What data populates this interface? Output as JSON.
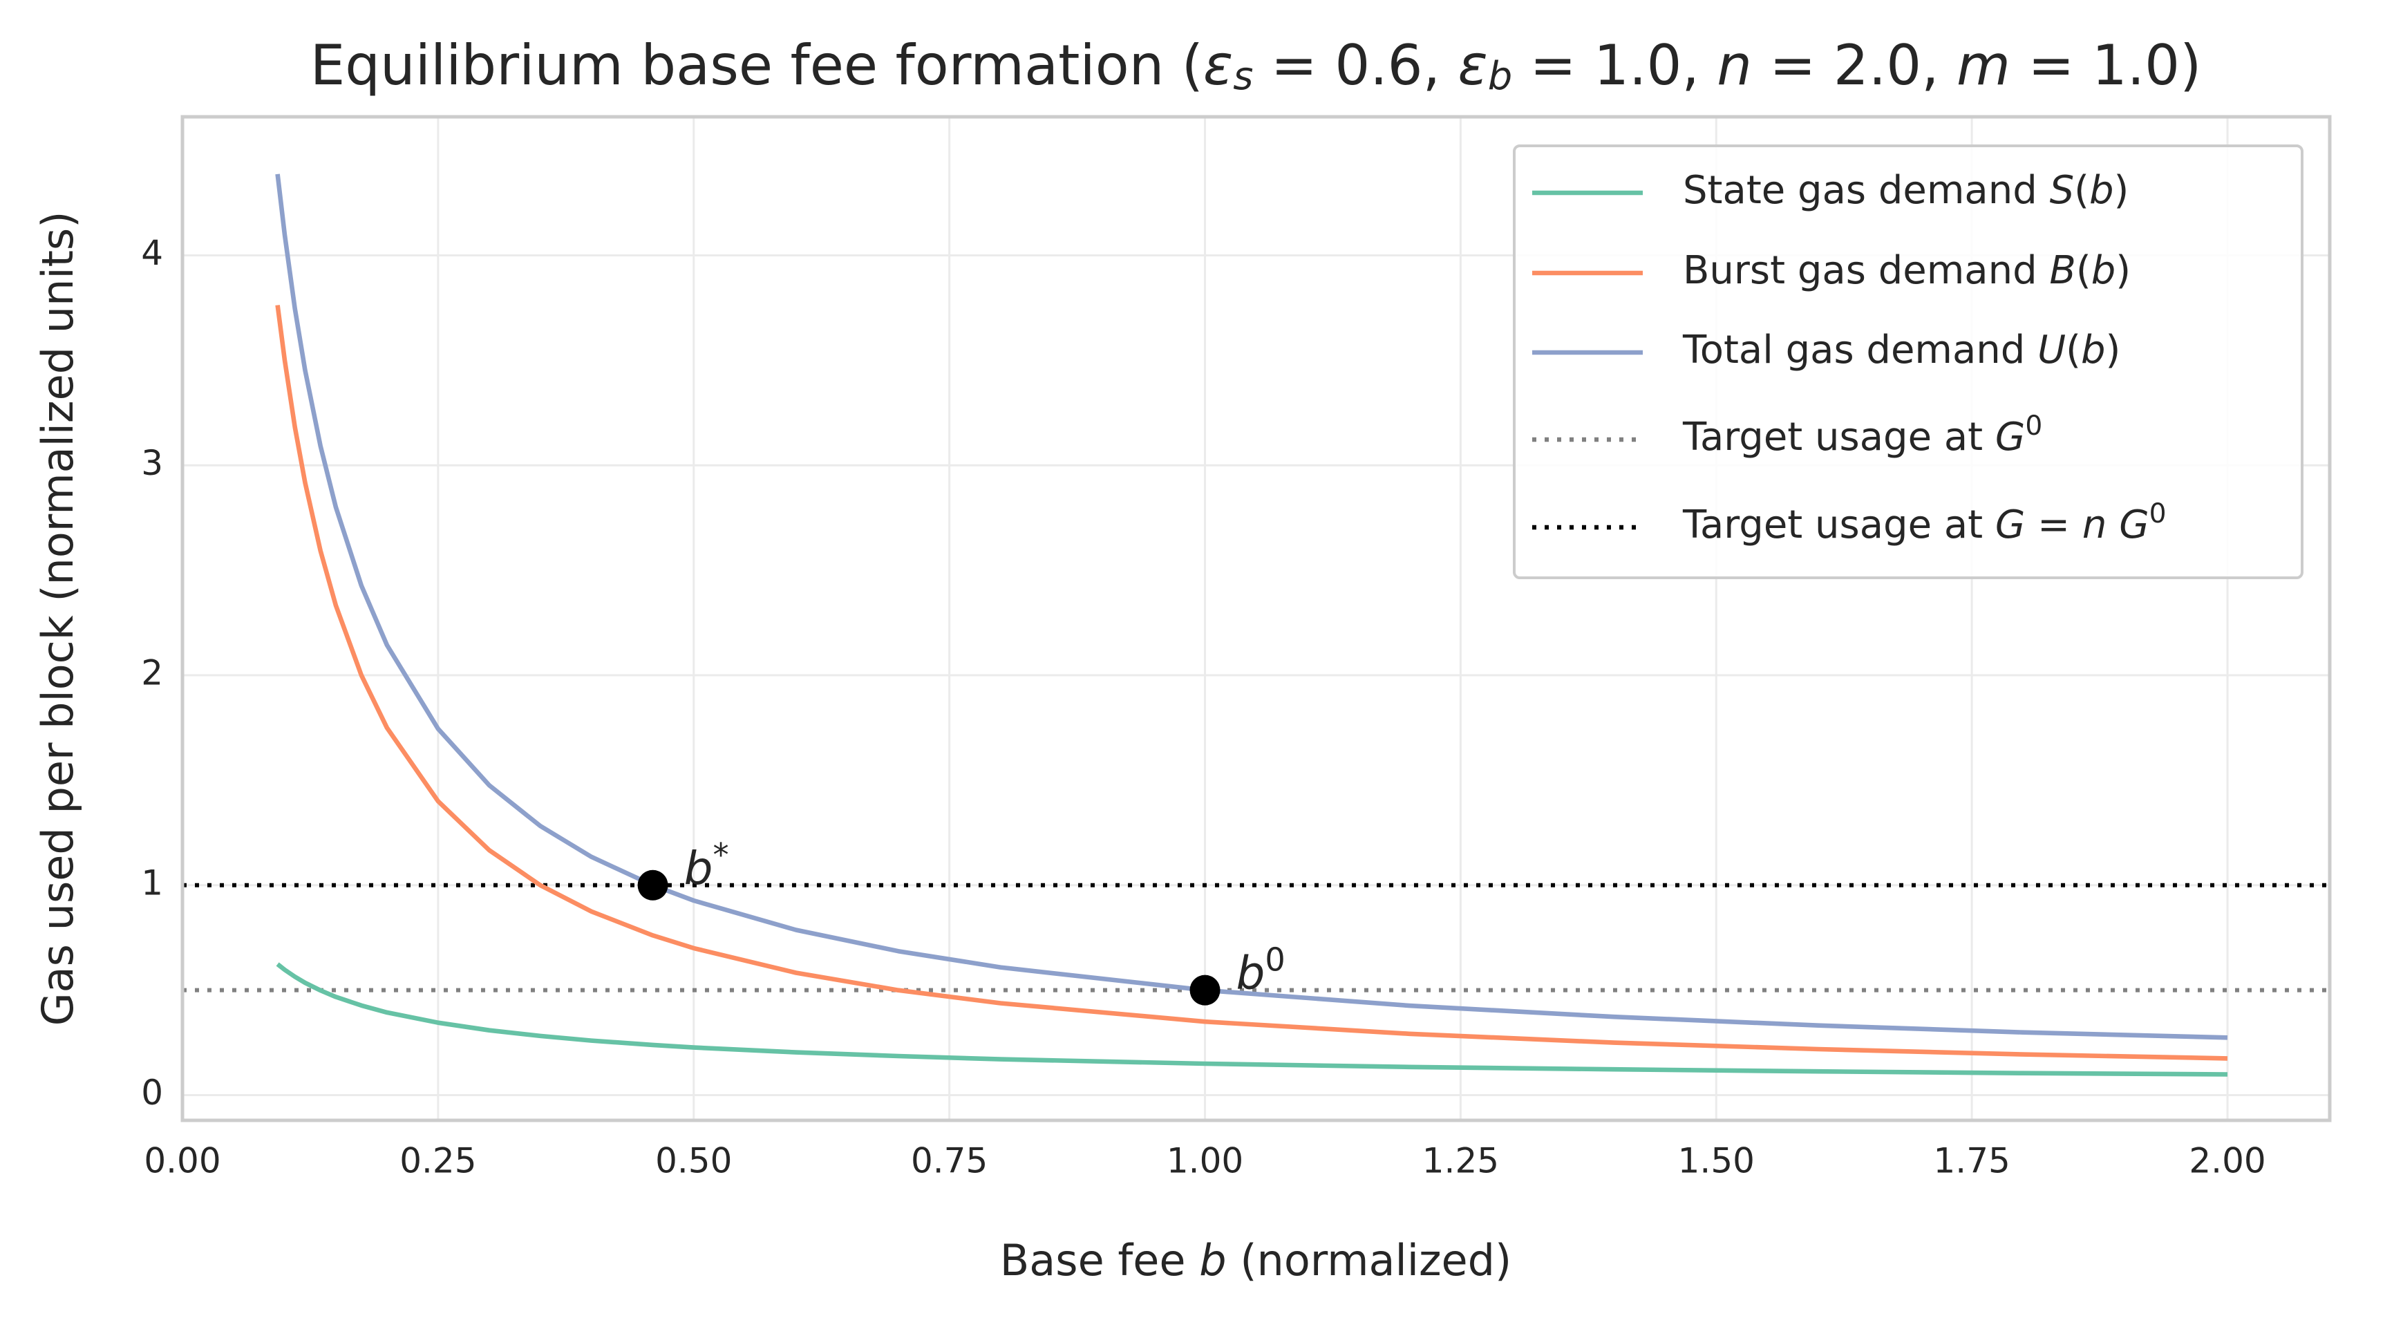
{
  "chart_data": {
    "type": "line",
    "title": "Equilibrium base fee formation ($ε_s = 0.6$, $ε_b = 1.0$, $n = 2.0$, $m = 1.0$)",
    "x_label": "Base fee $b$ (normalized)",
    "y_label": "Gas used per block (normalized units)",
    "x": [
      0.093,
      0.1,
      0.11,
      0.12,
      0.135,
      0.15,
      0.175,
      0.2,
      0.25,
      0.3,
      0.35,
      0.4,
      0.46,
      0.5,
      0.6,
      0.7,
      0.8,
      1.0,
      1.2,
      1.4,
      1.6,
      1.8,
      2.0
    ],
    "series": [
      {
        "name": "State gas demand $S(b)$",
        "color": "#66c2a5",
        "values": [
          0.624,
          0.597,
          0.564,
          0.535,
          0.499,
          0.468,
          0.427,
          0.394,
          0.345,
          0.309,
          0.282,
          0.26,
          0.239,
          0.227,
          0.204,
          0.186,
          0.171,
          0.15,
          0.134,
          0.123,
          0.113,
          0.105,
          0.099
        ]
      },
      {
        "name": "Burst gas demand $B(b)$",
        "color": "#fc8d62",
        "values": [
          3.763,
          3.5,
          3.182,
          2.917,
          2.593,
          2.333,
          2.0,
          1.75,
          1.4,
          1.167,
          1.0,
          0.875,
          0.761,
          0.7,
          0.583,
          0.5,
          0.438,
          0.35,
          0.292,
          0.25,
          0.219,
          0.194,
          0.175
        ]
      },
      {
        "name": "Total gas demand $U(b)$",
        "color": "#8da0cb",
        "values": [
          4.387,
          4.097,
          3.746,
          3.452,
          3.092,
          2.801,
          2.427,
          2.144,
          1.745,
          1.476,
          1.282,
          1.135,
          1.0,
          0.927,
          0.787,
          0.686,
          0.609,
          0.5,
          0.426,
          0.373,
          0.332,
          0.299,
          0.274
        ]
      }
    ],
    "hlines": [
      {
        "name": "Target usage at $G^0$",
        "color": "#808080",
        "value": 0.5
      },
      {
        "name": "Target usage at $G = n G^0$",
        "color": "#000000",
        "value": 1.0
      }
    ],
    "points": [
      {
        "label": "$b^*$",
        "x": 0.46,
        "y": 1.0,
        "color": "#000000"
      },
      {
        "label": "$b^0$",
        "x": 1.0,
        "y": 0.5,
        "color": "#000000"
      }
    ],
    "xlim": [
      0,
      2.1
    ],
    "ylim": [
      -0.12,
      4.66
    ],
    "xticks": [
      {
        "value": 0,
        "label": "0.00"
      },
      {
        "value": 0.25,
        "label": "0.25"
      },
      {
        "value": 0.5,
        "label": "0.50"
      },
      {
        "value": 0.75,
        "label": "0.75"
      },
      {
        "value": 1,
        "label": "1.00"
      },
      {
        "value": 1.25,
        "label": "1.25"
      },
      {
        "value": 1.5,
        "label": "1.50"
      },
      {
        "value": 1.75,
        "label": "1.75"
      },
      {
        "value": 2,
        "label": "2.00"
      }
    ],
    "yticks": [
      0,
      1,
      2,
      3,
      4
    ],
    "grid": true,
    "legend": "upper right"
  }
}
